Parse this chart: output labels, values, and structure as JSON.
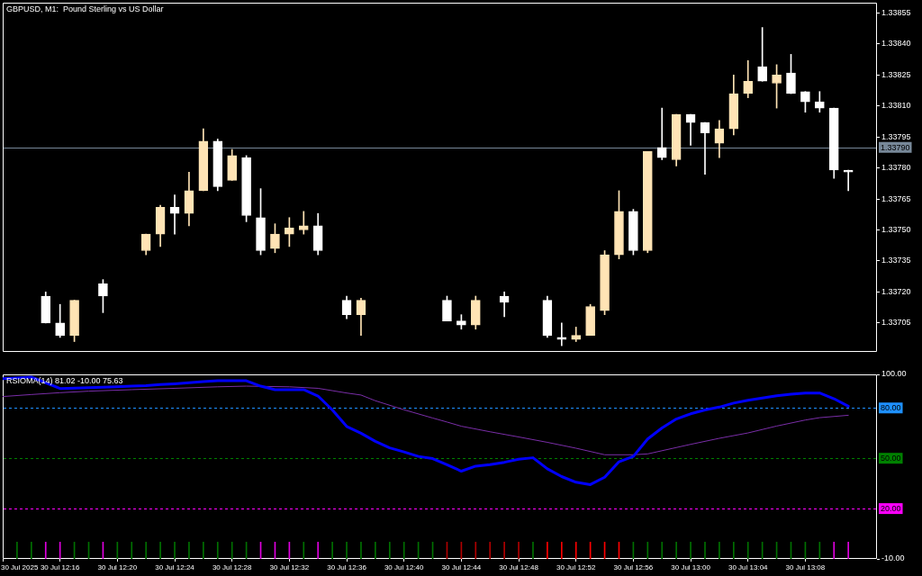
{
  "chart_data": [
    {
      "type": "candlestick",
      "title": "GBPUSD, M1:  Pound Sterling vs US Dollar",
      "x": [
        "2025-07-30T12:15",
        "2025-07-30T12:16",
        "2025-07-30T12:17",
        "2025-07-30T12:19",
        "2025-07-30T12:22",
        "2025-07-30T12:23",
        "2025-07-30T12:24",
        "2025-07-30T12:25",
        "2025-07-30T12:26",
        "2025-07-30T12:27",
        "2025-07-30T12:28",
        "2025-07-30T12:29",
        "2025-07-30T12:30",
        "2025-07-30T12:31",
        "2025-07-30T12:32",
        "2025-07-30T12:33",
        "2025-07-30T12:34",
        "2025-07-30T12:36",
        "2025-07-30T12:37",
        "2025-07-30T12:43",
        "2025-07-30T12:44",
        "2025-07-30T12:45",
        "2025-07-30T12:47",
        "2025-07-30T12:50",
        "2025-07-30T12:51",
        "2025-07-30T12:52",
        "2025-07-30T12:53",
        "2025-07-30T12:54",
        "2025-07-30T12:55",
        "2025-07-30T12:56",
        "2025-07-30T12:57",
        "2025-07-30T12:58",
        "2025-07-30T12:59",
        "2025-07-30T13:00",
        "2025-07-30T13:01",
        "2025-07-30T13:02",
        "2025-07-30T13:03",
        "2025-07-30T13:04",
        "2025-07-30T13:05",
        "2025-07-30T13:06",
        "2025-07-30T13:07",
        "2025-07-30T13:08",
        "2025-07-30T13:09",
        "2025-07-30T13:10",
        "2025-07-30T13:11"
      ],
      "ohlc": [
        [
          1.33718,
          1.3372,
          1.33705,
          1.33705
        ],
        [
          1.33705,
          1.33714,
          1.33698,
          1.33699
        ],
        [
          1.33699,
          1.33716,
          1.33696,
          1.33716
        ],
        [
          1.33724,
          1.33726,
          1.3371,
          1.33718
        ],
        [
          1.3374,
          1.33748,
          1.33738,
          1.33748
        ],
        [
          1.33748,
          1.33762,
          1.33742,
          1.33761
        ],
        [
          1.33761,
          1.33767,
          1.33748,
          1.33758
        ],
        [
          1.33758,
          1.33778,
          1.33752,
          1.33769
        ],
        [
          1.33769,
          1.33799,
          1.33769,
          1.33793
        ],
        [
          1.33793,
          1.33794,
          1.33769,
          1.33771
        ],
        [
          1.33774,
          1.33789,
          1.33774,
          1.33786
        ],
        [
          1.33785,
          1.33786,
          1.33754,
          1.33757
        ],
        [
          1.33756,
          1.3377,
          1.33738,
          1.3374
        ],
        [
          1.33741,
          1.33753,
          1.33739,
          1.33748
        ],
        [
          1.33748,
          1.33756,
          1.33742,
          1.33751
        ],
        [
          1.3375,
          1.33759,
          1.33748,
          1.33752
        ],
        [
          1.33752,
          1.33758,
          1.33738,
          1.3374
        ],
        [
          1.33716,
          1.33718,
          1.33707,
          1.33709
        ],
        [
          1.33709,
          1.33717,
          1.33699,
          1.33716
        ],
        [
          1.33716,
          1.33718,
          1.33706,
          1.33706
        ],
        [
          1.33706,
          1.33709,
          1.33702,
          1.33704
        ],
        [
          1.33704,
          1.33718,
          1.33702,
          1.33716
        ],
        [
          1.33718,
          1.3372,
          1.33708,
          1.33715
        ],
        [
          1.33716,
          1.33718,
          1.33698,
          1.33699
        ],
        [
          1.33698,
          1.33705,
          1.33694,
          1.33697
        ],
        [
          1.33697,
          1.33703,
          1.33696,
          1.33699
        ],
        [
          1.33699,
          1.33714,
          1.33699,
          1.33713
        ],
        [
          1.33711,
          1.3374,
          1.33709,
          1.33738
        ],
        [
          1.33738,
          1.33769,
          1.33736,
          1.33759
        ],
        [
          1.33759,
          1.3376,
          1.33738,
          1.3374
        ],
        [
          1.3374,
          1.33788,
          1.33739,
          1.33788
        ],
        [
          1.3379,
          1.33809,
          1.33784,
          1.33785
        ],
        [
          1.33784,
          1.33806,
          1.33781,
          1.33806
        ],
        [
          1.33806,
          1.33806,
          1.33791,
          1.33802
        ],
        [
          1.33802,
          1.33802,
          1.33777,
          1.33797
        ],
        [
          1.33792,
          1.33803,
          1.33785,
          1.33799
        ],
        [
          1.33799,
          1.33825,
          1.33796,
          1.33816
        ],
        [
          1.33816,
          1.33832,
          1.33814,
          1.33822
        ],
        [
          1.33829,
          1.33848,
          1.33822,
          1.33822
        ],
        [
          1.33821,
          1.3383,
          1.33809,
          1.33825
        ],
        [
          1.33826,
          1.33835,
          1.33816,
          1.33816
        ],
        [
          1.33817,
          1.33817,
          1.33807,
          1.33812
        ],
        [
          1.33812,
          1.33817,
          1.33807,
          1.33809
        ],
        [
          1.33809,
          1.33809,
          1.33775,
          1.33779
        ],
        [
          1.33779,
          1.33779,
          1.33769,
          1.33778
        ]
      ],
      "colors": [
        "#ffffff",
        "#ffffff",
        "#ffe4b5",
        "#ffffff",
        "#ffe4b5",
        "#ffe4b5",
        "#ffffff",
        "#ffe4b5",
        "#ffe4b5",
        "#ffffff",
        "#ffe4b5",
        "#ffffff",
        "#ffffff",
        "#ffe4b5",
        "#ffe4b5",
        "#ffe4b5",
        "#ffffff",
        "#ffffff",
        "#ffe4b5",
        "#ffffff",
        "#ffffff",
        "#ffe4b5",
        "#ffffff",
        "#ffffff",
        "#ffffff",
        "#ffe4b5",
        "#ffe4b5",
        "#ffe4b5",
        "#ffe4b5",
        "#ffffff",
        "#ffe4b5",
        "#ffffff",
        "#ffe4b5",
        "#ffffff",
        "#ffffff",
        "#ffe4b5",
        "#ffe4b5",
        "#ffe4b5",
        "#ffffff",
        "#ffe4b5",
        "#ffffff",
        "#ffffff",
        "#ffffff",
        "#ffffff",
        "#ffffff"
      ],
      "xlim": [
        "2025-07-30T12:12",
        "2025-07-30T13:13"
      ],
      "ylim": [
        1.33691,
        1.3386
      ],
      "yticks": [
        1.33705,
        {
          "value": 1.3372,
          "label": "1.33720"
        },
        1.33735,
        {
          "value": 1.3375,
          "label": "1.33750"
        },
        1.33765,
        {
          "value": 1.3378,
          "label": "1.33780"
        },
        1.33795,
        {
          "value": 1.3381,
          "label": "1.33810"
        },
        1.33825,
        {
          "value": 1.3384,
          "label": "1.33840"
        },
        1.33855
      ],
      "tick_labels": "y",
      "ref_lines": [
        {
          "axis": "y",
          "value": 1.3379,
          "label": "1.33790",
          "color": "#778899"
        }
      ]
    },
    {
      "type": "line",
      "title": "RSIOMA(14) 81.02 -10.00 75.63",
      "series": [
        {
          "color": "#0000ff",
          "x": [
            "2025-07-30T12:12",
            "2025-07-30T12:14",
            "2025-07-30T12:16",
            "2025-07-30T12:17",
            "2025-07-30T12:18",
            "2025-07-30T12:19",
            "2025-07-30T12:20",
            "2025-07-30T12:21",
            "2025-07-30T12:22",
            "2025-07-30T12:23",
            "2025-07-30T12:24",
            "2025-07-30T12:25",
            "2025-07-30T12:26",
            "2025-07-30T12:27",
            "2025-07-30T12:28",
            "2025-07-30T12:29",
            "2025-07-30T12:30",
            "2025-07-30T12:31",
            "2025-07-30T12:32",
            "2025-07-30T12:33",
            "2025-07-30T12:34",
            "2025-07-30T12:35",
            "2025-07-30T12:36",
            "2025-07-30T12:37",
            "2025-07-30T12:38",
            "2025-07-30T12:39",
            "2025-07-30T12:40",
            "2025-07-30T12:41",
            "2025-07-30T12:42",
            "2025-07-30T12:43",
            "2025-07-30T12:44",
            "2025-07-30T12:45",
            "2025-07-30T12:46",
            "2025-07-30T12:47",
            "2025-07-30T12:48",
            "2025-07-30T12:49",
            "2025-07-30T12:50",
            "2025-07-30T12:51",
            "2025-07-30T12:52",
            "2025-07-30T12:53",
            "2025-07-30T12:54",
            "2025-07-30T12:55",
            "2025-07-30T12:56",
            "2025-07-30T12:57",
            "2025-07-30T12:58",
            "2025-07-30T12:59",
            "2025-07-30T13:00",
            "2025-07-30T13:01",
            "2025-07-30T13:02",
            "2025-07-30T13:03",
            "2025-07-30T13:04",
            "2025-07-30T13:05",
            "2025-07-30T13:06",
            "2025-07-30T13:07",
            "2025-07-30T13:08",
            "2025-07-30T13:09",
            "2025-07-30T13:10",
            "2025-07-30T13:11"
          ],
          "values": [
            97.5,
            98.4,
            91.6,
            91.8,
            92.1,
            92.3,
            92.6,
            93.0,
            93.3,
            93.9,
            94.4,
            95.0,
            95.7,
            96.2,
            96.2,
            96.2,
            93.0,
            90.9,
            90.9,
            90.9,
            87.1,
            78.8,
            69.0,
            64.9,
            60.1,
            56.2,
            53.8,
            51.1,
            49.8,
            46.2,
            42.3,
            45.3,
            46.2,
            47.6,
            49.4,
            50.3,
            43.7,
            39.1,
            35.7,
            34.3,
            38.7,
            47.9,
            51.1,
            61.5,
            68.1,
            73.4,
            76.5,
            78.8,
            80.5,
            82.9,
            84.6,
            85.9,
            87.3,
            88.2,
            88.9,
            88.9,
            85.5,
            81.02
          ]
        },
        {
          "color": "#7a2ea8",
          "x": [
            "2025-07-30T12:12",
            "2025-07-30T12:14",
            "2025-07-30T12:16",
            "2025-07-30T12:18",
            "2025-07-30T12:21",
            "2025-07-30T12:24",
            "2025-07-30T12:27",
            "2025-07-30T12:29",
            "2025-07-30T12:32",
            "2025-07-30T12:34",
            "2025-07-30T12:35",
            "2025-07-30T12:36",
            "2025-07-30T12:37",
            "2025-07-30T12:38",
            "2025-07-30T12:40",
            "2025-07-30T12:42",
            "2025-07-30T12:43",
            "2025-07-30T12:44",
            "2025-07-30T12:46",
            "2025-07-30T12:48",
            "2025-07-30T12:50",
            "2025-07-30T12:52",
            "2025-07-30T12:54",
            "2025-07-30T12:56",
            "2025-07-30T12:57",
            "2025-07-30T13:00",
            "2025-07-30T13:02",
            "2025-07-30T13:04",
            "2025-07-30T13:06",
            "2025-07-30T13:08",
            "2025-07-30T13:09",
            "2025-07-30T13:11"
          ],
          "values": [
            86.8,
            88.0,
            89.1,
            90.0,
            90.9,
            91.7,
            92.6,
            93.0,
            92.6,
            91.7,
            90.3,
            88.9,
            87.7,
            84.3,
            78.9,
            74.0,
            71.6,
            69.1,
            65.8,
            62.7,
            59.5,
            56.0,
            52.1,
            52.1,
            52.6,
            58.3,
            61.9,
            65.1,
            69.2,
            72.8,
            74.2,
            75.63
          ]
        },
        {
          "type": "bar",
          "x": [
            "2025-07-30T12:13",
            "2025-07-30T12:14",
            "2025-07-30T12:15",
            "2025-07-30T12:16",
            "2025-07-30T12:17",
            "2025-07-30T12:18",
            "2025-07-30T12:19",
            "2025-07-30T12:20",
            "2025-07-30T12:21",
            "2025-07-30T12:22",
            "2025-07-30T12:23",
            "2025-07-30T12:24",
            "2025-07-30T12:25",
            "2025-07-30T12:26",
            "2025-07-30T12:27",
            "2025-07-30T12:28",
            "2025-07-30T12:29",
            "2025-07-30T12:30",
            "2025-07-30T12:31",
            "2025-07-30T12:32",
            "2025-07-30T12:33",
            "2025-07-30T12:34",
            "2025-07-30T12:35",
            "2025-07-30T12:36",
            "2025-07-30T12:37",
            "2025-07-30T12:38",
            "2025-07-30T12:39",
            "2025-07-30T12:40",
            "2025-07-30T12:41",
            "2025-07-30T12:42",
            "2025-07-30T12:43",
            "2025-07-30T12:44",
            "2025-07-30T12:45",
            "2025-07-30T12:46",
            "2025-07-30T12:47",
            "2025-07-30T12:48",
            "2025-07-30T12:49",
            "2025-07-30T12:50",
            "2025-07-30T12:51",
            "2025-07-30T12:52",
            "2025-07-30T12:53",
            "2025-07-30T12:54",
            "2025-07-30T12:55",
            "2025-07-30T12:56",
            "2025-07-30T12:57",
            "2025-07-30T12:58",
            "2025-07-30T12:59",
            "2025-07-30T13:00",
            "2025-07-30T13:01",
            "2025-07-30T13:02",
            "2025-07-30T13:03",
            "2025-07-30T13:04",
            "2025-07-30T13:05",
            "2025-07-30T13:06",
            "2025-07-30T13:07",
            "2025-07-30T13:08",
            "2025-07-30T13:09",
            "2025-07-30T13:10",
            "2025-07-30T13:11"
          ],
          "values": [
            -10,
            -10,
            -10,
            -10,
            -10,
            -10,
            -10,
            -10,
            -10,
            -10,
            -10,
            -10,
            -10,
            -10,
            -10,
            -10,
            -10,
            -10,
            -10,
            -10,
            -10,
            -10,
            -10,
            -10,
            -10,
            -10,
            -10,
            -10,
            -10,
            -10,
            -10,
            -10,
            -10,
            -10,
            -10,
            -10,
            -10,
            -10,
            -10,
            -10,
            -10,
            -10,
            -10,
            -10,
            -10,
            -10,
            -10,
            -10,
            -10,
            -10,
            -10,
            -10,
            -10,
            -10,
            -10,
            -10,
            -10,
            -10,
            -10
          ],
          "colors": [
            "#007000",
            "#007000",
            "#e000e0",
            "#e000e0",
            "#007000",
            "#007000",
            "#e000e0",
            "#007000",
            "#007000",
            "#007000",
            "#007000",
            "#007000",
            "#007000",
            "#007000",
            "#007000",
            "#007000",
            "#007000",
            "#e000e0",
            "#e000e0",
            "#e000e0",
            "#007000",
            "#e000e0",
            "#007000",
            "#007000",
            "#007000",
            "#007000",
            "#007000",
            "#007000",
            "#007000",
            "#007000",
            "#b00000",
            "#b00000",
            "#b00000",
            "#b00000",
            "#b00000",
            "#b00000",
            "#007000",
            "#ff0000",
            "#ff0000",
            "#ff0000",
            "#ff0000",
            "#ff0000",
            "#ff0000",
            "#007000",
            "#007000",
            "#007000",
            "#007000",
            "#007000",
            "#007000",
            "#007000",
            "#007000",
            "#007000",
            "#007000",
            "#007000",
            "#007000",
            "#007000",
            "#007000",
            "#e000e0",
            "#e000e0"
          ]
        }
      ],
      "xlim": [
        "2025-07-30T12:12",
        "2025-07-30T13:13"
      ],
      "xticks": [
        {
          "value": "2025-07-30T12:12",
          "label": "30 Jul 2025"
        },
        {
          "value": "2025-07-30T12:16",
          "label": "30 Jul 12:16"
        },
        {
          "value": "2025-07-30T12:20",
          "label": "30 Jul 12:20"
        },
        {
          "value": "2025-07-30T12:24",
          "label": "30 Jul 12:24"
        },
        {
          "value": "2025-07-30T12:28",
          "label": "30 Jul 12:28"
        },
        {
          "value": "2025-07-30T12:32",
          "label": "30 Jul 12:32"
        },
        {
          "value": "2025-07-30T12:36",
          "label": "30 Jul 12:36"
        },
        {
          "value": "2025-07-30T12:40",
          "label": "30 Jul 12:40"
        },
        {
          "value": "2025-07-30T12:44",
          "label": "30 Jul 12:44"
        },
        {
          "value": "2025-07-30T12:48",
          "label": "30 Jul 12:48"
        },
        {
          "value": "2025-07-30T12:52",
          "label": "30 Jul 12:52"
        },
        {
          "value": "2025-07-30T12:56",
          "label": "30 Jul 12:56"
        },
        {
          "value": "2025-07-30T13:00",
          "label": "30 Jul 13:00"
        },
        {
          "value": "2025-07-30T13:04",
          "label": "30 Jul 13:04"
        },
        {
          "value": "2025-07-30T13:08",
          "label": "30 Jul 13:08"
        }
      ],
      "ylim": [
        -10,
        100
      ],
      "yticks": [
        {
          "value": 100,
          "label": "100.00"
        },
        {
          "value": -10,
          "label": "-10.00"
        }
      ],
      "ref_lines": [
        {
          "axis": "y",
          "value": 80,
          "label": "80.00",
          "color": "#1e90ff",
          "line_style": "dashed"
        },
        {
          "axis": "y",
          "value": 50,
          "label": "50.00",
          "color": "#008000",
          "line_style": "dashed"
        },
        {
          "axis": "y",
          "value": 20,
          "label": "20.00",
          "color": "#ff00ff",
          "line_style": "dashed"
        }
      ]
    }
  ]
}
